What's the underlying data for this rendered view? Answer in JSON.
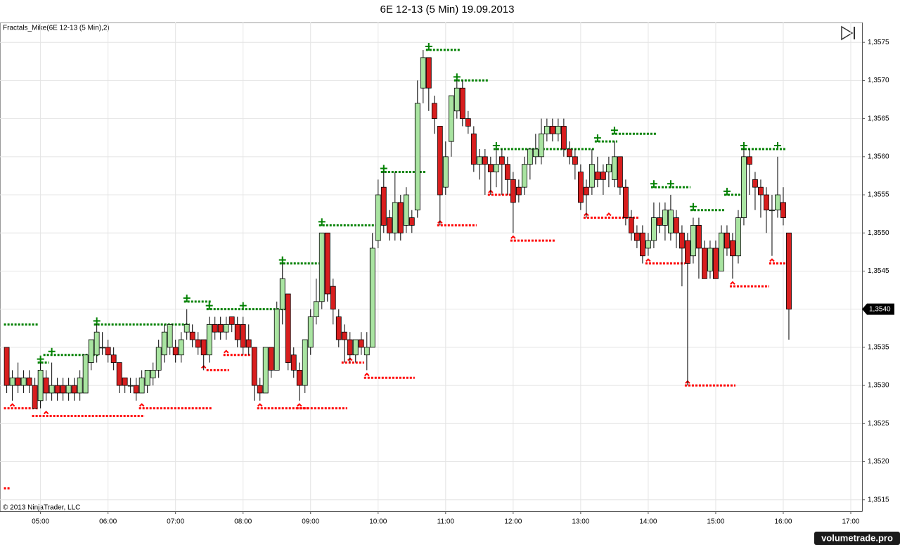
{
  "chart_data": {
    "type": "candlestick",
    "title": "6E 12-13 (5 Min)  19.09.2013",
    "indicator_label": "Fractals_Mike(6E 12-13 (5 Min),2)",
    "copyright": "© 2013 NinjaTrader, LLC",
    "watermark": "volumetrade.pro",
    "up_color": "#a9e4a1",
    "down_color": "#d81e1e",
    "grid": true,
    "x": [
      "04:30",
      "04:35",
      "04:40",
      "04:45",
      "04:50",
      "04:55",
      "05:00",
      "05:05",
      "05:10",
      "05:15",
      "05:20",
      "05:25",
      "05:30",
      "05:35",
      "05:40",
      "05:45",
      "05:50",
      "05:55",
      "06:00",
      "06:05",
      "06:10",
      "06:15",
      "06:20",
      "06:25",
      "06:30",
      "06:35",
      "06:40",
      "06:45",
      "06:50",
      "06:55",
      "07:00",
      "07:05",
      "07:10",
      "07:15",
      "07:20",
      "07:25",
      "07:30",
      "07:35",
      "07:40",
      "07:45",
      "07:50",
      "07:55",
      "08:00",
      "08:05",
      "08:10",
      "08:15",
      "08:20",
      "08:25",
      "08:30",
      "08:35",
      "08:40",
      "08:45",
      "08:50",
      "08:55",
      "09:00",
      "09:05",
      "09:10",
      "09:15",
      "09:20",
      "09:25",
      "09:30",
      "09:35",
      "09:40",
      "09:45",
      "09:50",
      "09:55",
      "10:00",
      "10:05",
      "10:10",
      "10:15",
      "10:20",
      "10:25",
      "10:30",
      "10:35",
      "10:40",
      "10:45",
      "10:50",
      "10:55",
      "11:00",
      "11:05",
      "11:10",
      "11:15",
      "11:20",
      "11:25",
      "11:30",
      "11:35",
      "11:40",
      "11:45",
      "11:50",
      "11:55",
      "12:00",
      "12:05",
      "12:10",
      "12:15",
      "12:20",
      "12:25",
      "12:30",
      "12:35",
      "12:40",
      "12:45",
      "12:50",
      "12:55",
      "13:00",
      "13:05",
      "13:10",
      "13:15",
      "13:20",
      "13:25",
      "13:30",
      "13:35",
      "13:40",
      "13:45",
      "13:50",
      "13:55",
      "14:00",
      "14:05",
      "14:10",
      "14:15",
      "14:20",
      "14:25",
      "14:30",
      "14:35",
      "14:40",
      "14:45",
      "14:50",
      "14:55",
      "15:00",
      "15:05",
      "15:10",
      "15:15",
      "15:20",
      "15:25",
      "15:30",
      "15:35",
      "15:40",
      "15:45",
      "15:50",
      "15:55",
      "16:00",
      "16:05"
    ],
    "open": [
      1.3535,
      1.353,
      1.3531,
      1.353,
      1.3531,
      1.353,
      1.3528,
      1.3531,
      1.3529,
      1.353,
      1.353,
      1.3529,
      1.353,
      1.3529,
      1.3529,
      1.3533,
      1.3534,
      1.3535,
      1.3535,
      1.3534,
      1.3533,
      1.3531,
      1.353,
      1.353,
      1.3529,
      1.353,
      1.3531,
      1.3532,
      1.3534,
      1.3535,
      1.3535,
      1.3534,
      1.3537,
      1.3537,
      1.3536,
      1.3536,
      1.3534,
      1.3538,
      1.3538,
      1.3537,
      1.3539,
      1.3538,
      1.3538,
      1.3536,
      1.3535,
      1.353,
      1.3529,
      1.3535,
      1.3532,
      1.354,
      1.3542,
      1.3534,
      1.3532,
      1.353,
      1.3535,
      1.3539,
      1.3541,
      1.355,
      1.3543,
      1.3539,
      1.3537,
      1.3536,
      1.3534,
      1.3536,
      1.3534,
      1.3535,
      1.3549,
      1.3556,
      1.3552,
      1.355,
      1.3554,
      1.3551,
      1.3552,
      1.3553,
      1.3569,
      1.3573,
      1.3567,
      1.3564,
      1.3556,
      1.3562,
      1.3566,
      1.3569,
      1.3565,
      1.3563,
      1.3559,
      1.356,
      1.3559,
      1.3558,
      1.356,
      1.3559,
      1.3557,
      1.3556,
      1.3556,
      1.3559,
      1.356,
      1.356,
      1.3563,
      1.3564,
      1.3563,
      1.3564,
      1.3561,
      1.356,
      1.3558,
      1.3556,
      1.3556,
      1.3558,
      1.3558,
      1.3558,
      1.3557,
      1.356,
      1.3556,
      1.3552,
      1.355,
      1.355,
      1.3548,
      1.3549,
      1.3552,
      1.3551,
      1.355,
      1.3552,
      1.355,
      1.3549,
      1.3547,
      1.3551,
      1.3548,
      1.3545,
      1.3548,
      1.3545,
      1.355,
      1.3549,
      1.3547,
      1.3552,
      1.356,
      1.3557,
      1.3556,
      1.3555,
      1.3553,
      1.3553,
      1.3554,
      1.355
    ],
    "high": [
      1.3535,
      1.3532,
      1.3533,
      1.3532,
      1.3532,
      1.3531,
      1.3533,
      1.3532,
      1.3533,
      1.3531,
      1.3531,
      1.3531,
      1.3531,
      1.3532,
      1.3534,
      1.3536,
      1.3538,
      1.3537,
      1.3536,
      1.3535,
      1.3533,
      1.3531,
      1.3531,
      1.3531,
      1.3532,
      1.3532,
      1.3533,
      1.3536,
      1.3538,
      1.3538,
      1.3536,
      1.3537,
      1.354,
      1.3538,
      1.3537,
      1.3536,
      1.3539,
      1.3539,
      1.3539,
      1.3539,
      1.3539,
      1.3539,
      1.3539,
      1.3538,
      1.3535,
      1.3531,
      1.3535,
      1.3535,
      1.3541,
      1.3546,
      1.3542,
      1.3535,
      1.3533,
      1.3536,
      1.354,
      1.3544,
      1.355,
      1.355,
      1.3544,
      1.354,
      1.3538,
      1.3537,
      1.3536,
      1.3537,
      1.3537,
      1.355,
      1.3557,
      1.3558,
      1.3553,
      1.3558,
      1.3555,
      1.3556,
      1.3553,
      1.357,
      1.3574,
      1.3573,
      1.3568,
      1.3564,
      1.3562,
      1.3568,
      1.357,
      1.357,
      1.3566,
      1.3564,
      1.3561,
      1.3561,
      1.356,
      1.3561,
      1.3561,
      1.356,
      1.3558,
      1.3557,
      1.356,
      1.3561,
      1.3563,
      1.3565,
      1.3565,
      1.3565,
      1.3565,
      1.3565,
      1.3562,
      1.3561,
      1.3559,
      1.3557,
      1.3561,
      1.356,
      1.3559,
      1.356,
      1.3562,
      1.356,
      1.3557,
      1.3553,
      1.3551,
      1.3551,
      1.355,
      1.3554,
      1.3554,
      1.3554,
      1.3555,
      1.3553,
      1.3551,
      1.355,
      1.3552,
      1.3552,
      1.3549,
      1.3549,
      1.3549,
      1.3551,
      1.3551,
      1.355,
      1.3553,
      1.3561,
      1.3561,
      1.3558,
      1.3557,
      1.3556,
      1.3555,
      1.356,
      1.3556,
      1.355
    ],
    "low": [
      1.3529,
      1.3528,
      1.3529,
      1.3529,
      1.3529,
      1.3527,
      1.3527,
      1.3528,
      1.3528,
      1.3528,
      1.3528,
      1.3528,
      1.3528,
      1.3528,
      1.3529,
      1.3532,
      1.3533,
      1.3534,
      1.3533,
      1.3532,
      1.3529,
      1.3529,
      1.3529,
      1.3528,
      1.3529,
      1.3529,
      1.353,
      1.3531,
      1.3533,
      1.3534,
      1.3533,
      1.3533,
      1.3536,
      1.3535,
      1.3534,
      1.3532,
      1.3533,
      1.3536,
      1.3536,
      1.3536,
      1.3537,
      1.3535,
      1.3534,
      1.3534,
      1.3528,
      1.3528,
      1.3529,
      1.3531,
      1.3532,
      1.3538,
      1.3532,
      1.3531,
      1.3528,
      1.3529,
      1.3534,
      1.3538,
      1.354,
      1.3541,
      1.3538,
      1.3535,
      1.3533,
      1.3533,
      1.3533,
      1.3534,
      1.3532,
      1.3535,
      1.3548,
      1.355,
      1.3549,
      1.3549,
      1.3549,
      1.355,
      1.355,
      1.3552,
      1.3567,
      1.3566,
      1.3563,
      1.3551,
      1.3555,
      1.356,
      1.3565,
      1.3564,
      1.3563,
      1.3558,
      1.3557,
      1.3555,
      1.3555,
      1.3556,
      1.3555,
      1.3555,
      1.355,
      1.3554,
      1.3555,
      1.3557,
      1.3559,
      1.3559,
      1.3562,
      1.3562,
      1.3562,
      1.356,
      1.3559,
      1.3557,
      1.3553,
      1.3552,
      1.3555,
      1.3556,
      1.3555,
      1.3556,
      1.3556,
      1.3555,
      1.3551,
      1.3549,
      1.3548,
      1.3546,
      1.3547,
      1.3548,
      1.355,
      1.3549,
      1.3549,
      1.3548,
      1.3543,
      1.353,
      1.3546,
      1.3544,
      1.3544,
      1.3544,
      1.3544,
      1.3545,
      1.3547,
      1.3544,
      1.3546,
      1.3551,
      1.3555,
      1.3553,
      1.3552,
      1.355,
      1.3547,
      1.3552,
      1.3551,
      1.3536
    ],
    "close": [
      1.353,
      1.3531,
      1.353,
      1.3531,
      1.353,
      1.3527,
      1.3532,
      1.3529,
      1.353,
      1.3529,
      1.3529,
      1.353,
      1.3529,
      1.3531,
      1.3534,
      1.3536,
      1.3537,
      1.3535,
      1.3534,
      1.3533,
      1.353,
      1.353,
      1.353,
      1.3529,
      1.3531,
      1.3532,
      1.3532,
      1.3535,
      1.3537,
      1.3538,
      1.3534,
      1.3536,
      1.3538,
      1.3536,
      1.3535,
      1.3534,
      1.3538,
      1.3537,
      1.3537,
      1.3538,
      1.3538,
      1.3536,
      1.3535,
      1.3535,
      1.353,
      1.3529,
      1.3535,
      1.3532,
      1.354,
      1.3544,
      1.3533,
      1.3532,
      1.353,
      1.3536,
      1.3539,
      1.3541,
      1.355,
      1.3542,
      1.354,
      1.3536,
      1.3536,
      1.3534,
      1.3536,
      1.3535,
      1.3535,
      1.3548,
      1.3555,
      1.3551,
      1.355,
      1.3554,
      1.355,
      1.3555,
      1.3551,
      1.3567,
      1.3573,
      1.3569,
      1.3565,
      1.3555,
      1.356,
      1.3568,
      1.3569,
      1.3565,
      1.3564,
      1.3559,
      1.356,
      1.3559,
      1.3558,
      1.3559,
      1.3559,
      1.3557,
      1.3554,
      1.3555,
      1.3559,
      1.3561,
      1.3561,
      1.3563,
      1.3564,
      1.3563,
      1.3564,
      1.3561,
      1.356,
      1.3559,
      1.3554,
      1.3555,
      1.3559,
      1.3557,
      1.3557,
      1.3559,
      1.356,
      1.3556,
      1.3552,
      1.355,
      1.3549,
      1.3547,
      1.3549,
      1.3552,
      1.3551,
      1.3553,
      1.3553,
      1.355,
      1.3548,
      1.3546,
      1.3551,
      1.3548,
      1.3544,
      1.3548,
      1.3544,
      1.355,
      1.3548,
      1.3547,
      1.3552,
      1.356,
      1.3559,
      1.3556,
      1.3555,
      1.3553,
      1.3553,
      1.3555,
      1.3552,
      1.354
    ],
    "fractal_up_color": "#008000",
    "fractal_down_color": "#ff0000",
    "fractal_up": [
      {
        "from": "04:30",
        "to": "04:55",
        "value": 1.3538
      },
      {
        "from": "05:00",
        "to": "05:05",
        "value": 1.3533,
        "marks": [
          "05:00"
        ]
      },
      {
        "from": "05:05",
        "to": "05:50",
        "value": 1.3534,
        "marks": [
          "05:10"
        ]
      },
      {
        "from": "05:50",
        "to": "07:10",
        "value": 1.3538,
        "marks": [
          "05:50"
        ]
      },
      {
        "from": "07:10",
        "to": "07:30",
        "value": 1.3541,
        "marks": [
          "07:10"
        ]
      },
      {
        "from": "07:30",
        "to": "08:35",
        "value": 1.354,
        "marks": [
          "07:30",
          "08:00"
        ]
      },
      {
        "from": "08:35",
        "to": "09:05",
        "value": 1.3546,
        "marks": [
          "08:35"
        ]
      },
      {
        "from": "09:10",
        "to": "10:00",
        "value": 1.3551,
        "marks": [
          "09:10"
        ]
      },
      {
        "from": "10:05",
        "to": "10:40",
        "value": 1.3558,
        "marks": [
          "10:05"
        ]
      },
      {
        "from": "10:45",
        "to": "11:10",
        "value": 1.3574,
        "marks": [
          "10:45"
        ]
      },
      {
        "from": "11:10",
        "to": "11:35",
        "value": 1.357,
        "marks": [
          "11:10"
        ]
      },
      {
        "from": "11:45",
        "to": "13:10",
        "value": 1.3561,
        "marks": [
          "11:45"
        ]
      },
      {
        "from": "13:15",
        "to": "13:30",
        "value": 1.3562,
        "marks": [
          "13:15"
        ]
      },
      {
        "from": "13:30",
        "to": "14:05",
        "value": 1.3563,
        "marks": [
          "13:30"
        ]
      },
      {
        "from": "14:05",
        "to": "14:35",
        "value": 1.3556,
        "marks": [
          "14:05",
          "14:20"
        ]
      },
      {
        "from": "14:40",
        "to": "15:05",
        "value": 1.3553,
        "marks": [
          "14:40"
        ]
      },
      {
        "from": "15:10",
        "to": "15:20",
        "value": 1.3555,
        "marks": [
          "15:10"
        ]
      },
      {
        "from": "15:25",
        "to": "16:00",
        "value": 1.3561,
        "marks": [
          "15:25",
          "15:55"
        ]
      }
    ],
    "fractal_down": [
      {
        "from": "04:30",
        "to": "04:30",
        "value": 1.35165
      },
      {
        "from": "04:30",
        "to": "04:55",
        "value": 1.3527,
        "marks": [
          "04:35"
        ]
      },
      {
        "from": "04:55",
        "to": "06:30",
        "value": 1.3526,
        "marks": [
          "05:05"
        ]
      },
      {
        "from": "06:30",
        "to": "07:30",
        "value": 1.3527,
        "marks": [
          "06:30"
        ]
      },
      {
        "from": "07:30",
        "to": "07:45",
        "value": 1.3532,
        "marks": [
          "07:25"
        ]
      },
      {
        "from": "07:45",
        "to": "08:05",
        "value": 1.3534,
        "marks": [
          "07:45"
        ]
      },
      {
        "from": "08:15",
        "to": "08:55",
        "value": 1.3527,
        "marks": [
          "08:15"
        ]
      },
      {
        "from": "08:50",
        "to": "09:30",
        "value": 1.3527,
        "marks": [
          "08:50"
        ]
      },
      {
        "from": "09:30",
        "to": "09:45",
        "value": 1.3533,
        "marks": [
          "09:35"
        ]
      },
      {
        "from": "09:50",
        "to": "10:30",
        "value": 1.3531,
        "marks": [
          "09:50"
        ]
      },
      {
        "from": "10:55",
        "to": "11:25",
        "value": 1.3551,
        "marks": [
          "10:55"
        ]
      },
      {
        "from": "11:40",
        "to": "11:55",
        "value": 1.3555,
        "marks": [
          "11:40"
        ]
      },
      {
        "from": "12:00",
        "to": "12:35",
        "value": 1.3549,
        "marks": [
          "12:00"
        ]
      },
      {
        "from": "13:05",
        "to": "13:50",
        "value": 1.3552,
        "marks": [
          "13:05",
          "13:25"
        ]
      },
      {
        "from": "14:00",
        "to": "14:30",
        "value": 1.3546,
        "marks": [
          "14:00"
        ]
      },
      {
        "from": "14:35",
        "to": "15:15",
        "value": 1.353,
        "marks": [
          "14:35"
        ]
      },
      {
        "from": "15:15",
        "to": "15:45",
        "value": 1.3543,
        "marks": [
          "15:15"
        ]
      },
      {
        "from": "15:50",
        "to": "16:00",
        "value": 1.3546,
        "marks": [
          "15:50"
        ]
      }
    ],
    "last_price": {
      "value": 1.354,
      "label": "1,3540"
    },
    "xlim": [
      "04:24",
      "17:10"
    ],
    "xticks": [
      "05:00",
      "06:00",
      "07:00",
      "08:00",
      "09:00",
      "10:00",
      "11:00",
      "12:00",
      "13:00",
      "14:00",
      "15:00",
      "16:00",
      "17:00"
    ],
    "ylim": [
      1.35135,
      1.35776
    ],
    "yticks": [
      {
        "value": 1.3515,
        "label": "1,3515"
      },
      {
        "value": 1.352,
        "label": "1,3520"
      },
      {
        "value": 1.3525,
        "label": "1,3525"
      },
      {
        "value": 1.353,
        "label": "1,3530"
      },
      {
        "value": 1.3535,
        "label": "1,3535"
      },
      {
        "value": 1.354,
        "label": "1,3540"
      },
      {
        "value": 1.3545,
        "label": "1,3545"
      },
      {
        "value": 1.355,
        "label": "1,3550"
      },
      {
        "value": 1.3555,
        "label": "1,3555"
      },
      {
        "value": 1.356,
        "label": "1,3560"
      },
      {
        "value": 1.3565,
        "label": "1,3565"
      },
      {
        "value": 1.357,
        "label": "1,3570"
      },
      {
        "value": 1.3575,
        "label": "1,3575"
      }
    ]
  }
}
